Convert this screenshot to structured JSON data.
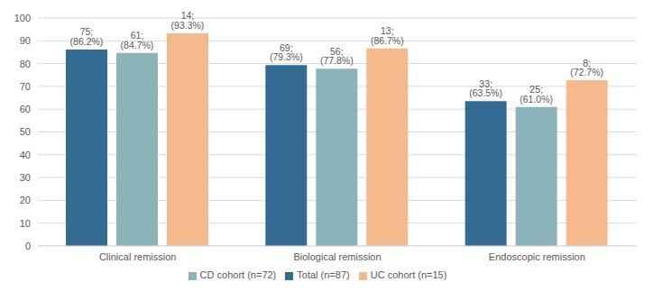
{
  "chart_data": {
    "type": "bar",
    "categories": [
      "Clinical remission",
      "Biological remission",
      "Endoscopic remission"
    ],
    "series": [
      {
        "name": "Total (n=87)",
        "color": "#336b95",
        "values": [
          86.2,
          79.3,
          63.5
        ],
        "value_labels": [
          "75; (86.2%)",
          "69; (79.3%)",
          "33; (63.5%)"
        ]
      },
      {
        "name": "CD cohort (n=72)",
        "color": "#8cb3b9",
        "values": [
          84.7,
          77.8,
          61.0
        ],
        "value_labels": [
          "61; (84.7%)",
          "56; (77.8%)",
          "25; (61.0%)"
        ]
      },
      {
        "name": "UC cohort (n=15)",
        "color": "#f4b98c",
        "values": [
          93.3,
          86.7,
          72.7
        ],
        "value_labels": [
          "14; (93.3%)",
          "13; (86.7%)",
          "8; (72.7%)"
        ]
      }
    ],
    "ylim": [
      0,
      100
    ],
    "yticks": [
      0,
      10,
      20,
      30,
      40,
      50,
      60,
      70,
      80,
      90,
      100
    ],
    "grid": true,
    "legend": "bottom",
    "data_labels": true
  }
}
